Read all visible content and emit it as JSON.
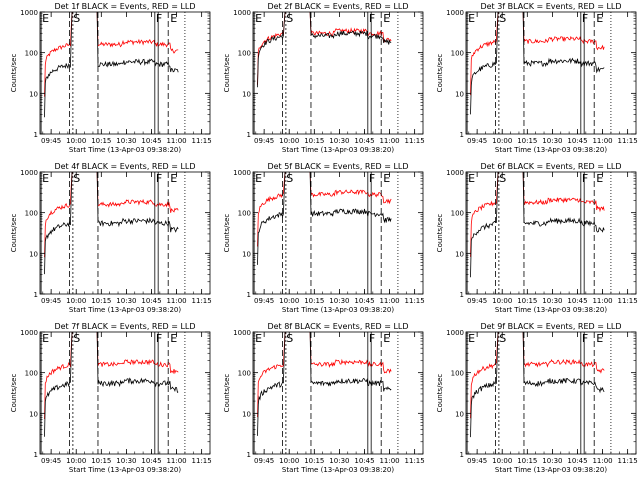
{
  "colors": {
    "events": "#000000",
    "lld": "#ff0000",
    "axes": "#000000"
  },
  "chart_data": [
    {
      "type": "line",
      "title": "Det 1f BLACK = Events, RED = LLD",
      "xlabel": "Start Time (13-Apr-03 09:38:20)",
      "ylabel": "Counts/sec",
      "xticks": [
        "09:45",
        "10:00",
        "10:15",
        "10:30",
        "10:45",
        "11:00",
        "11:15"
      ],
      "yticks": [
        "1",
        "10",
        "100",
        "1000"
      ],
      "yscale": "log",
      "ylim": [
        1,
        1000
      ],
      "xlim": [
        "09:38:20",
        "11:20"
      ],
      "lld_level": 160,
      "events_level": 52,
      "lld_peak": 1000,
      "events_peak": 1000,
      "markers": {
        "E1": "09:39",
        "S": "09:57",
        "dash_S1": "09:56",
        "dash_S2": "09:58",
        "dash_mid": "10:13",
        "F1": "10:47",
        "F2": "10:49",
        "E2": "10:55",
        "dotted": "11:05"
      },
      "marker_labels": [
        "E",
        "S",
        "F",
        "E"
      ]
    },
    {
      "type": "line",
      "title": "Det 2f BLACK = Events, RED = LLD",
      "xlabel": "Start Time (13-Apr-03 09:38:20)",
      "ylabel": "Counts/sec",
      "xticks": [
        "09:45",
        "10:00",
        "10:15",
        "10:30",
        "10:45",
        "11:00",
        "11:15"
      ],
      "yticks": [
        "1",
        "10",
        "100",
        "1000"
      ],
      "yscale": "log",
      "ylim": [
        1,
        1000
      ],
      "xlim": [
        "09:38:20",
        "11:20"
      ],
      "lld_level": 300,
      "events_level": 260,
      "lld_peak": 1000,
      "events_peak": 1000,
      "markers": {
        "E1": "09:39",
        "S": "09:57",
        "dash_S1": "09:56",
        "dash_S2": "09:58",
        "dash_mid": "10:13",
        "F1": "10:47",
        "F2": "10:49",
        "E2": "10:55",
        "dotted": "11:05"
      },
      "marker_labels": [
        "E",
        "S",
        "F",
        "E"
      ]
    },
    {
      "type": "line",
      "title": "Det 3f BLACK = Events, RED = LLD",
      "xlabel": "Start Time (13-Apr-03 09:38:20)",
      "ylabel": "Counts/sec",
      "xticks": [
        "09:45",
        "10:00",
        "10:15",
        "10:30",
        "10:45",
        "11:00",
        "11:15"
      ],
      "yticks": [
        "1",
        "10",
        "100",
        "1000"
      ],
      "yscale": "log",
      "ylim": [
        1,
        1000
      ],
      "xlim": [
        "09:38:20",
        "11:20"
      ],
      "lld_level": 190,
      "events_level": 55,
      "lld_peak": 1000,
      "events_peak": 1000,
      "markers": {
        "E1": "09:39",
        "S": "09:57",
        "dash_S1": "09:56",
        "dash_S2": "09:58",
        "dash_mid": "10:13",
        "F1": "10:47",
        "F2": "10:49",
        "E2": "10:55",
        "dotted": "11:05"
      },
      "marker_labels": [
        "E",
        "S",
        "F",
        "E"
      ]
    },
    {
      "type": "line",
      "title": "Det 4f BLACK = Events, RED = LLD",
      "xlabel": "Start Time (13-Apr-03 09:38:20)",
      "ylabel": "Counts/sec",
      "xticks": [
        "09:45",
        "10:00",
        "10:15",
        "10:30",
        "10:45",
        "11:00",
        "11:15"
      ],
      "yticks": [
        "1",
        "10",
        "100",
        "1000"
      ],
      "yscale": "log",
      "ylim": [
        1,
        1000
      ],
      "xlim": [
        "09:38:20",
        "11:20"
      ],
      "lld_level": 160,
      "events_level": 55,
      "lld_peak": 1000,
      "events_peak": 1000,
      "markers": {
        "E1": "09:39",
        "S": "09:57",
        "dash_S1": "09:56",
        "dash_S2": "09:58",
        "dash_mid": "10:13",
        "F1": "10:47",
        "F2": "10:49",
        "E2": "10:55",
        "dotted": "11:05"
      },
      "marker_labels": [
        "E",
        "S",
        "F",
        "E"
      ]
    },
    {
      "type": "line",
      "title": "Det 5f BLACK = Events, RED = LLD",
      "xlabel": "Start Time (13-Apr-03 09:38:20)",
      "ylabel": "Counts/sec",
      "xticks": [
        "09:45",
        "10:00",
        "10:15",
        "10:30",
        "10:45",
        "11:00",
        "11:15"
      ],
      "yticks": [
        "1",
        "10",
        "100",
        "1000"
      ],
      "yscale": "log",
      "ylim": [
        1,
        1000
      ],
      "xlim": [
        "09:38:20",
        "11:20"
      ],
      "lld_level": 280,
      "events_level": 95,
      "lld_peak": 1000,
      "events_peak": 1000,
      "markers": {
        "E1": "09:39",
        "S": "09:57",
        "dash_S1": "09:56",
        "dash_S2": "09:58",
        "dash_mid": "10:13",
        "F1": "10:47",
        "F2": "10:49",
        "E2": "10:55",
        "dotted": "11:05"
      },
      "marker_labels": [
        "E",
        "S",
        "F",
        "E"
      ]
    },
    {
      "type": "line",
      "title": "Det 6f BLACK = Events, RED = LLD",
      "xlabel": "Start Time (13-Apr-03 09:38:20)",
      "ylabel": "Counts/sec",
      "xticks": [
        "09:45",
        "10:00",
        "10:15",
        "10:30",
        "10:45",
        "11:00",
        "11:15"
      ],
      "yticks": [
        "1",
        "10",
        "100",
        "1000"
      ],
      "yscale": "log",
      "ylim": [
        1,
        1000
      ],
      "xlim": [
        "09:38:20",
        "11:20"
      ],
      "lld_level": 180,
      "events_level": 55,
      "lld_peak": 1000,
      "events_peak": 1000,
      "markers": {
        "E1": "09:39",
        "S": "09:57",
        "dash_S1": "09:56",
        "dash_S2": "09:58",
        "dash_mid": "10:13",
        "F1": "10:47",
        "F2": "10:49",
        "E2": "10:55",
        "dotted": "11:05"
      },
      "marker_labels": [
        "E",
        "S",
        "F",
        "E"
      ]
    },
    {
      "type": "line",
      "title": "Det 7f BLACK = Events, RED = LLD",
      "xlabel": "Start Time (13-Apr-03 09:38:20)",
      "ylabel": "Counts/sec",
      "xticks": [
        "09:45",
        "10:00",
        "10:15",
        "10:30",
        "10:45",
        "11:00",
        "11:15"
      ],
      "yticks": [
        "1",
        "10",
        "100",
        "1000"
      ],
      "yscale": "log",
      "ylim": [
        1,
        1000
      ],
      "xlim": [
        "09:38:20",
        "11:20"
      ],
      "lld_level": 160,
      "events_level": 55,
      "lld_peak": 1000,
      "events_peak": 1000,
      "markers": {
        "E1": "09:39",
        "S": "09:57",
        "dash_S1": "09:56",
        "dash_S2": "09:58",
        "dash_mid": "10:13",
        "F1": "10:47",
        "F2": "10:49",
        "E2": "10:55",
        "dotted": "11:05"
      },
      "marker_labels": [
        "E",
        "S",
        "F",
        "E"
      ]
    },
    {
      "type": "line",
      "title": "Det 8f BLACK = Events, RED = LLD",
      "xlabel": "Start Time (13-Apr-03 09:38:20)",
      "ylabel": "Counts/sec",
      "xticks": [
        "09:45",
        "10:00",
        "10:15",
        "10:30",
        "10:45",
        "11:00",
        "11:15"
      ],
      "yticks": [
        "1",
        "10",
        "100",
        "1000"
      ],
      "yscale": "log",
      "ylim": [
        1,
        1000
      ],
      "xlim": [
        "09:38:20",
        "11:20"
      ],
      "lld_level": 160,
      "events_level": 55,
      "lld_peak": 1000,
      "events_peak": 1000,
      "markers": {
        "E1": "09:39",
        "S": "09:57",
        "dash_S1": "09:56",
        "dash_S2": "09:58",
        "dash_mid": "10:13",
        "F1": "10:47",
        "F2": "10:49",
        "E2": "10:55",
        "dotted": "11:05"
      },
      "marker_labels": [
        "E",
        "S",
        "F",
        "E"
      ]
    },
    {
      "type": "line",
      "title": "Det 9f BLACK = Events, RED = LLD",
      "xlabel": "Start Time (13-Apr-03 09:38:20)",
      "ylabel": "Counts/sec",
      "xticks": [
        "09:45",
        "10:00",
        "10:15",
        "10:30",
        "10:45",
        "11:00",
        "11:15"
      ],
      "yticks": [
        "1",
        "10",
        "100",
        "1000"
      ],
      "yscale": "log",
      "ylim": [
        1,
        1000
      ],
      "xlim": [
        "09:38:20",
        "11:20"
      ],
      "lld_level": 160,
      "events_level": 55,
      "lld_peak": 1000,
      "events_peak": 1000,
      "markers": {
        "E1": "09:39",
        "S": "09:57",
        "dash_S1": "09:56",
        "dash_S2": "09:58",
        "dash_mid": "10:13",
        "F1": "10:47",
        "F2": "10:49",
        "E2": "10:55",
        "dotted": "11:05"
      },
      "marker_labels": [
        "E",
        "S",
        "F",
        "E"
      ]
    }
  ]
}
